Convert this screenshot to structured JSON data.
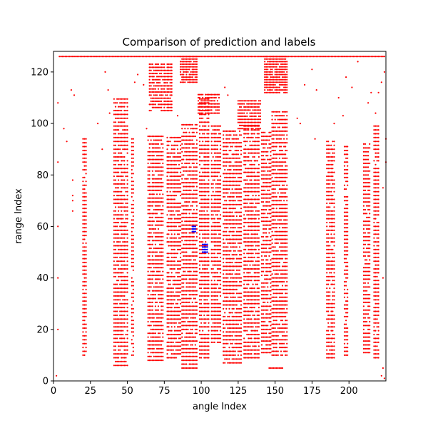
{
  "chart_data": {
    "type": "scatter",
    "title": "Comparison of prediction and labels",
    "xlabel": "angle Index",
    "ylabel": "range Index",
    "xlim": [
      0,
      225
    ],
    "ylim": [
      0,
      128
    ],
    "xticks": [
      0,
      25,
      50,
      75,
      100,
      125,
      150,
      175,
      200
    ],
    "yticks": [
      0,
      20,
      40,
      60,
      80,
      100,
      120
    ],
    "grid": false,
    "legend": "none",
    "series": [
      {
        "color": "#ff0000",
        "marker_radius": 1.1,
        "blocks": [
          {
            "x": [
              4,
              224
            ],
            "y": [
              126,
              126
            ],
            "xstep": 1,
            "ystep": 2
          },
          {
            "x": [
              20,
              22
            ],
            "y": [
              10,
              94
            ],
            "xstep": 1,
            "ystep": 1.5
          },
          {
            "x": [
              41,
              50
            ],
            "y": [
              6,
              110
            ],
            "xstep": 1,
            "ystep": 1.5
          },
          {
            "x": [
              53,
              54
            ],
            "y": [
              10,
              95
            ],
            "xstep": 1,
            "ystep": 1.5
          },
          {
            "x": [
              64,
              74
            ],
            "y": [
              8,
              95
            ],
            "xstep": 1,
            "ystep": 1.5
          },
          {
            "x": [
              77,
              86
            ],
            "y": [
              9,
              95
            ],
            "xstep": 1,
            "ystep": 1.5
          },
          {
            "x": [
              87,
              97
            ],
            "y": [
              5,
              100
            ],
            "xstep": 1,
            "ystep": 1.5
          },
          {
            "x": [
              99,
              105
            ],
            "y": [
              9,
              110
            ],
            "xstep": 1,
            "ystep": 1.5
          },
          {
            "x": [
              107,
              113
            ],
            "y": [
              15,
              100
            ],
            "xstep": 1,
            "ystep": 1.5
          },
          {
            "x": [
              115,
              127
            ],
            "y": [
              7,
              97
            ],
            "xstep": 1,
            "ystep": 1.5
          },
          {
            "x": [
              129,
              139
            ],
            "y": [
              9,
              100
            ],
            "xstep": 1,
            "ystep": 1.5
          },
          {
            "x": [
              141,
              147
            ],
            "y": [
              11,
              97
            ],
            "xstep": 1,
            "ystep": 1.5
          },
          {
            "x": [
              148,
              158
            ],
            "y": [
              10,
              105
            ],
            "xstep": 1,
            "ystep": 1.5
          },
          {
            "x": [
              146,
              155
            ],
            "y": [
              5,
              5
            ],
            "xstep": 1,
            "ystep": 1
          },
          {
            "x": [
              185,
              190
            ],
            "y": [
              9,
              93
            ],
            "xstep": 1,
            "ystep": 1.5
          },
          {
            "x": [
              197,
              199
            ],
            "y": [
              10,
              92
            ],
            "xstep": 1,
            "ystep": 1.5
          },
          {
            "x": [
              210,
              214
            ],
            "y": [
              11,
              93
            ],
            "xstep": 1,
            "ystep": 1.5
          },
          {
            "x": [
              217,
              220
            ],
            "y": [
              9,
              100
            ],
            "xstep": 1,
            "ystep": 1.5
          },
          {
            "x": [
              143,
              158
            ],
            "y": [
              112,
              126
            ],
            "xstep": 1,
            "ystep": 1
          },
          {
            "x": [
              86,
              97
            ],
            "y": [
              116,
              126
            ],
            "xstep": 1,
            "ystep": 1
          },
          {
            "x": [
              65,
              80
            ],
            "y": [
              105,
              124
            ],
            "xstep": 1,
            "ystep": 1.2
          },
          {
            "x": [
              125,
              140
            ],
            "y": [
              98,
              110
            ],
            "xstep": 1,
            "ystep": 1.2
          },
          {
            "x": [
              98,
              112
            ],
            "y": [
              104,
              112
            ],
            "xstep": 1,
            "ystep": 1.2
          }
        ],
        "points": [
          [
            2,
            2
          ],
          [
            224,
            1
          ],
          [
            222,
            2
          ],
          [
            223,
            5
          ],
          [
            3,
            85
          ],
          [
            3,
            60
          ],
          [
            3,
            40
          ],
          [
            3,
            20
          ],
          [
            3,
            108
          ],
          [
            7,
            98
          ],
          [
            12,
            113
          ],
          [
            9,
            93
          ],
          [
            14,
            111
          ],
          [
            35,
            120
          ],
          [
            30,
            100
          ],
          [
            33,
            90
          ],
          [
            37,
            113
          ],
          [
            38,
            104
          ],
          [
            57,
            119
          ],
          [
            61,
            115
          ],
          [
            63,
            98
          ],
          [
            55,
            116
          ],
          [
            84,
            103
          ],
          [
            116,
            114
          ],
          [
            118,
            111
          ],
          [
            167,
            100
          ],
          [
            170,
            115
          ],
          [
            175,
            121
          ],
          [
            178,
            113
          ],
          [
            177,
            94
          ],
          [
            165,
            102
          ],
          [
            190,
            100
          ],
          [
            193,
            110
          ],
          [
            196,
            103
          ],
          [
            198,
            118
          ],
          [
            202,
            114
          ],
          [
            206,
            124
          ],
          [
            213,
            108
          ],
          [
            218,
            104
          ],
          [
            215,
            112
          ],
          [
            220,
            112
          ],
          [
            222,
            116
          ],
          [
            224,
            120
          ],
          [
            225,
            94
          ],
          [
            13,
            78
          ],
          [
            13,
            70
          ],
          [
            13,
            66
          ],
          [
            13,
            72
          ],
          [
            225,
            85
          ],
          [
            223,
            40
          ],
          [
            223,
            75
          ]
        ]
      },
      {
        "color": "#0000ff",
        "marker_radius": 1.2,
        "blocks": [],
        "points": [
          [
            94,
            58
          ],
          [
            95,
            58
          ],
          [
            96,
            58
          ],
          [
            94,
            59
          ],
          [
            95,
            59
          ],
          [
            96,
            59
          ],
          [
            94,
            60
          ],
          [
            95,
            60
          ],
          [
            96,
            60
          ],
          [
            101,
            50
          ],
          [
            102,
            50
          ],
          [
            103,
            50
          ],
          [
            104,
            50
          ],
          [
            101,
            51
          ],
          [
            102,
            51
          ],
          [
            103,
            51
          ],
          [
            104,
            51
          ],
          [
            101,
            52
          ],
          [
            102,
            52
          ],
          [
            103,
            52
          ],
          [
            104,
            52
          ],
          [
            101,
            53
          ],
          [
            102,
            53
          ],
          [
            103,
            53
          ],
          [
            104,
            53
          ]
        ]
      }
    ]
  }
}
